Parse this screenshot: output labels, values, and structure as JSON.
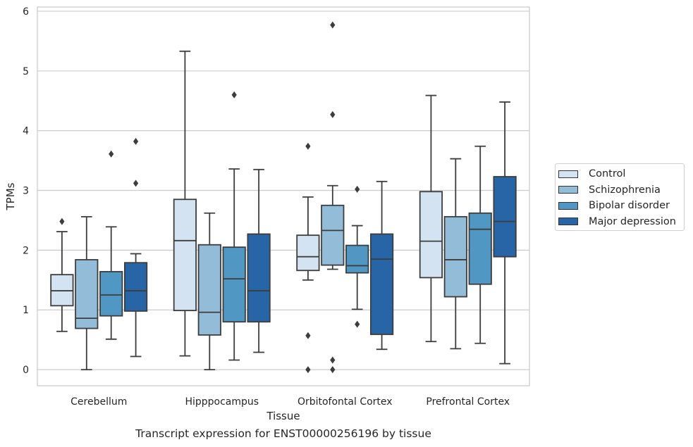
{
  "caption": "Transcript expression for ENST00000256196 by tissue",
  "chart_data": {
    "type": "boxplot",
    "xlabel": "Tissue",
    "ylabel": "TPMs",
    "ylim": [
      -0.27,
      6.07
    ],
    "yticks": [
      0,
      1,
      2,
      3,
      4,
      5,
      6
    ],
    "grid": "horizontal",
    "legend_position": "right",
    "categories": [
      "Cerebellum",
      "Hipppocampus",
      "Orbitofontal Cortex",
      "Prefrontal Cortex"
    ],
    "series": [
      {
        "name": "Control",
        "color": "#d4e3f1",
        "boxes": [
          {
            "whislo": 0.64,
            "q1": 1.07,
            "med": 1.32,
            "q3": 1.59,
            "whishi": 2.31,
            "fliers": [
              2.48
            ]
          },
          {
            "whislo": 0.23,
            "q1": 0.99,
            "med": 2.16,
            "q3": 2.85,
            "whishi": 5.33,
            "fliers": []
          },
          {
            "whislo": 1.5,
            "q1": 1.66,
            "med": 1.89,
            "q3": 2.25,
            "whishi": 2.89,
            "fliers": [
              3.74,
              0.57,
              0.0
            ]
          },
          {
            "whislo": 0.47,
            "q1": 1.54,
            "med": 2.15,
            "q3": 2.98,
            "whishi": 4.59,
            "fliers": []
          }
        ]
      },
      {
        "name": "Schizophrenia",
        "color": "#93bcd8",
        "boxes": [
          {
            "whislo": 0.0,
            "q1": 0.69,
            "med": 0.86,
            "q3": 1.84,
            "whishi": 2.56,
            "fliers": []
          },
          {
            "whislo": 0.0,
            "q1": 0.58,
            "med": 0.96,
            "q3": 2.09,
            "whishi": 2.62,
            "fliers": []
          },
          {
            "whislo": 1.68,
            "q1": 1.75,
            "med": 2.33,
            "q3": 2.75,
            "whishi": 3.08,
            "fliers": [
              5.77,
              4.27,
              0.16,
              0.0
            ]
          },
          {
            "whislo": 0.35,
            "q1": 1.22,
            "med": 1.84,
            "q3": 2.56,
            "whishi": 3.53,
            "fliers": []
          }
        ]
      },
      {
        "name": "Bipolar disorder",
        "color": "#5097c4",
        "boxes": [
          {
            "whislo": 0.51,
            "q1": 0.9,
            "med": 1.25,
            "q3": 1.64,
            "whishi": 2.39,
            "fliers": [
              3.61
            ]
          },
          {
            "whislo": 0.16,
            "q1": 0.8,
            "med": 1.52,
            "q3": 2.05,
            "whishi": 3.36,
            "fliers": [
              4.6
            ]
          },
          {
            "whislo": 1.01,
            "q1": 1.62,
            "med": 1.74,
            "q3": 2.08,
            "whishi": 2.41,
            "fliers": [
              3.02,
              0.76
            ]
          },
          {
            "whislo": 0.44,
            "q1": 1.43,
            "med": 2.35,
            "q3": 2.62,
            "whishi": 3.74,
            "fliers": []
          }
        ]
      },
      {
        "name": "Major depression",
        "color": "#2865a7",
        "boxes": [
          {
            "whislo": 0.22,
            "q1": 0.98,
            "med": 1.32,
            "q3": 1.79,
            "whishi": 1.94,
            "fliers": [
              3.82,
              3.12
            ]
          },
          {
            "whislo": 0.29,
            "q1": 0.8,
            "med": 1.32,
            "q3": 2.27,
            "whishi": 3.35,
            "fliers": []
          },
          {
            "whislo": 0.34,
            "q1": 0.59,
            "med": 1.85,
            "q3": 2.27,
            "whishi": 3.15,
            "fliers": []
          },
          {
            "whislo": 0.1,
            "q1": 1.89,
            "med": 2.48,
            "q3": 3.23,
            "whishi": 4.48,
            "fliers": []
          }
        ]
      }
    ]
  }
}
